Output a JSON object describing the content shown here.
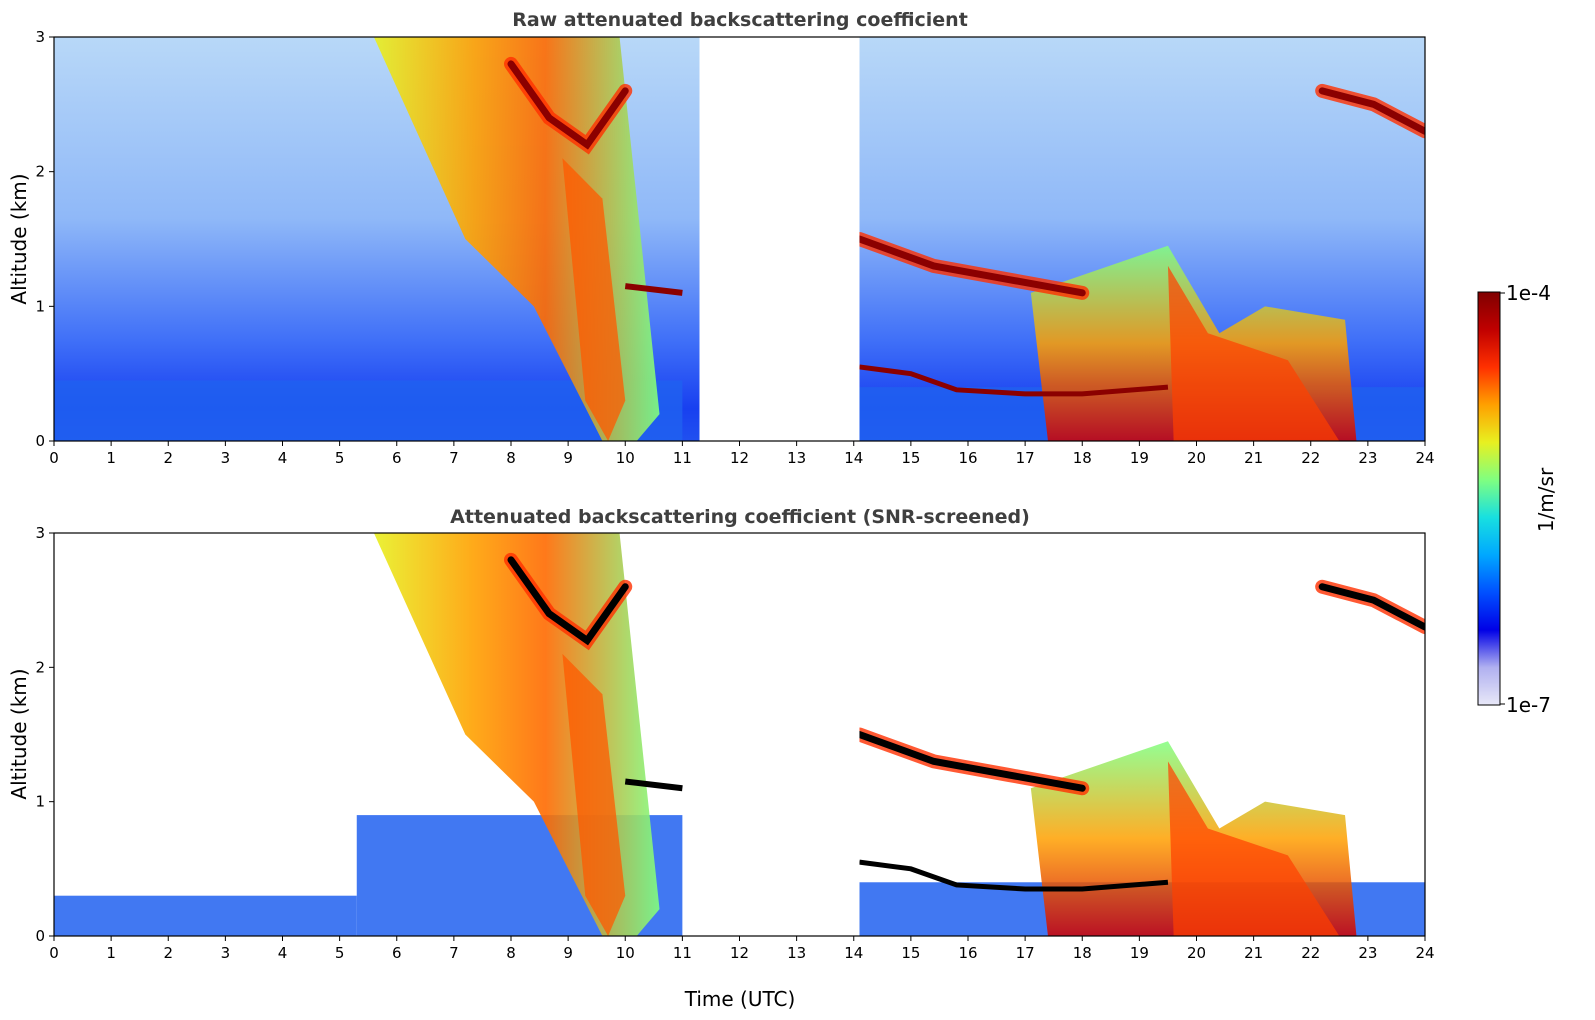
{
  "colors": {
    "colormap": [
      "#e8e8f8",
      "#b0b0f0",
      "#0000e6",
      "#0050ff",
      "#00a8ff",
      "#18e0e0",
      "#80ff80",
      "#e8f020",
      "#ffa000",
      "#ff3000",
      "#c00000",
      "#800000",
      "#000000"
    ]
  },
  "chart_data": [
    {
      "type": "heatmap",
      "title": "Raw attenuated backscattering coefficient",
      "xlabel": "",
      "ylabel": "Altitude (km)",
      "xlim": [
        0,
        24
      ],
      "ylim": [
        0,
        3
      ],
      "xticks": [
        "0",
        "1",
        "2",
        "3",
        "4",
        "5",
        "6",
        "7",
        "8",
        "9",
        "10",
        "11",
        "12",
        "13",
        "14",
        "15",
        "16",
        "17",
        "18",
        "19",
        "20",
        "21",
        "22",
        "23",
        "24"
      ],
      "yticks": [
        "0",
        "1",
        "2",
        "3"
      ],
      "data_gap_utc": [
        11.3,
        14.1
      ],
      "features": [
        {
          "kind": "boundary_layer",
          "x": [
            0,
            11
          ],
          "top_km": 0.45
        },
        {
          "kind": "cloud_layer",
          "x": [
            8.0,
            10.0
          ],
          "alt_km": [
            2.8,
            2.4,
            2.2,
            2.6
          ]
        },
        {
          "kind": "cloud_layer",
          "x": [
            14.1,
            18.0
          ],
          "alt_km": [
            1.5,
            1.3,
            1.2,
            1.1
          ]
        },
        {
          "kind": "cloud_layer",
          "x": [
            22.2,
            24.0
          ],
          "alt_km": [
            2.6,
            2.5,
            2.3
          ]
        },
        {
          "kind": "precipitation",
          "x": [
            19.5,
            22.5
          ],
          "top_km": 1.3
        }
      ]
    },
    {
      "type": "heatmap",
      "title": "Attenuated backscattering coefficient (SNR-screened)",
      "xlabel": "Time (UTC)",
      "ylabel": "Altitude (km)",
      "xlim": [
        0,
        24
      ],
      "ylim": [
        0,
        3
      ],
      "xticks": [
        "0",
        "1",
        "2",
        "3",
        "4",
        "5",
        "6",
        "7",
        "8",
        "9",
        "10",
        "11",
        "12",
        "13",
        "14",
        "15",
        "16",
        "17",
        "18",
        "19",
        "20",
        "21",
        "22",
        "23",
        "24"
      ],
      "yticks": [
        "0",
        "1",
        "2",
        "3"
      ],
      "data_gap_utc": [
        11.3,
        14.1
      ],
      "features": [
        {
          "kind": "boundary_layer",
          "x": [
            0,
            5.3
          ],
          "top_km": 0.3
        },
        {
          "kind": "boundary_layer",
          "x": [
            5.3,
            11
          ],
          "top_km": 0.9
        },
        {
          "kind": "cloud_layer",
          "x": [
            8.0,
            10.0
          ],
          "alt_km": [
            2.8,
            2.4,
            2.2,
            2.6
          ]
        },
        {
          "kind": "cloud_layer",
          "x": [
            14.1,
            18.0
          ],
          "alt_km": [
            1.5,
            1.3,
            1.2,
            1.1
          ]
        },
        {
          "kind": "cloud_layer",
          "x": [
            22.2,
            24.0
          ],
          "alt_km": [
            2.6,
            2.5,
            2.3
          ]
        },
        {
          "kind": "precipitation",
          "x": [
            19.5,
            22.5
          ],
          "top_km": 1.3
        }
      ]
    }
  ],
  "colorbar": {
    "label": "1/m/sr",
    "max_label": "1e-4",
    "min_label": "1e-7",
    "scale": "log"
  }
}
